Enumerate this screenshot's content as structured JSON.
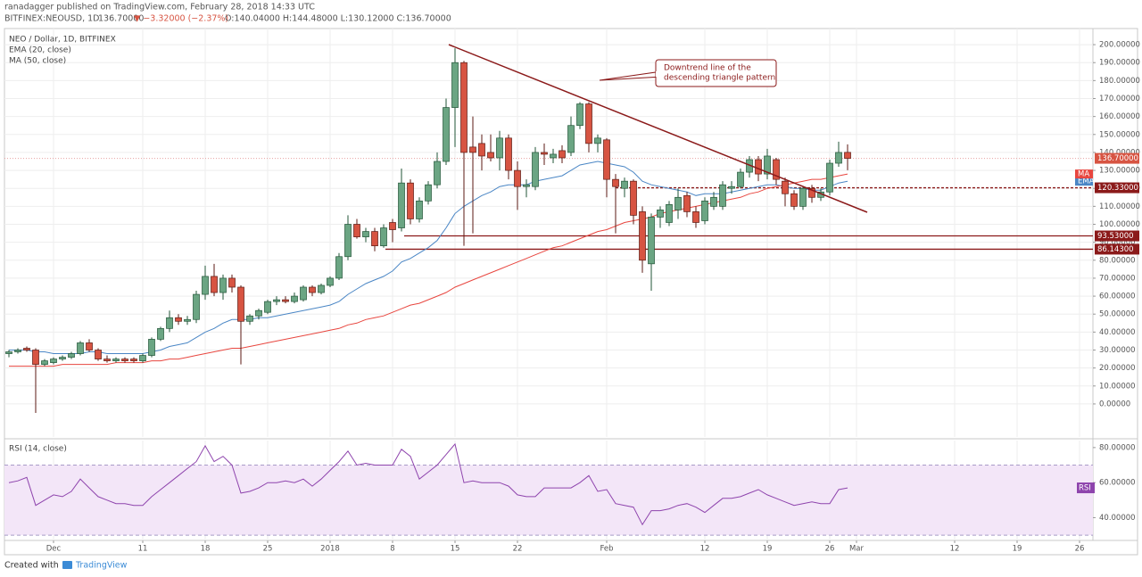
{
  "header": {
    "author_line": "ranadagger published on TradingView.com, February 28, 2018 14:33 UTC",
    "symbol": "BITFINEX:NEOUSD, 1D",
    "last": "136.70000",
    "change": "▼ −3.32000 (−2.37%)",
    "ohlc": "O:140.04000 H:144.48000 L:130.12000 C:136.70000"
  },
  "footer": {
    "created": "Created with",
    "brand": "TradingView"
  },
  "chart_data": [
    {
      "type": "candlestick",
      "title": "NEO / Dollar, 1D, BITFINEX",
      "categories": [
        null,
        null,
        null,
        null,
        null,
        "Dec",
        null,
        null,
        null,
        null,
        null,
        null,
        null,
        null,
        null,
        "11",
        null,
        null,
        null,
        null,
        null,
        null,
        "18",
        null,
        null,
        null,
        null,
        null,
        null,
        "25",
        null,
        null,
        null,
        null,
        null,
        null,
        "2018",
        null,
        null,
        null,
        null,
        null,
        null,
        "8",
        null,
        null,
        null,
        null,
        null,
        null,
        "15",
        null,
        null,
        null,
        null,
        null,
        null,
        "22",
        null,
        null,
        null,
        null,
        null,
        null,
        null,
        null,
        null,
        "Feb",
        null,
        null,
        null,
        null,
        null,
        null,
        null,
        null,
        null,
        null,
        "12",
        null,
        null,
        null,
        null,
        null,
        null,
        "19",
        null,
        null,
        null,
        null,
        null,
        null,
        "26",
        null,
        null,
        "Mar",
        null,
        null,
        null,
        null,
        null,
        null,
        null,
        null,
        null,
        null,
        "12",
        null,
        null,
        null,
        null,
        null,
        null,
        "19",
        null,
        null,
        null,
        null,
        null,
        null,
        "26",
        null
      ],
      "open": [
        28,
        29,
        31,
        30,
        22,
        23,
        25,
        26,
        28,
        34,
        30,
        25,
        24,
        25,
        25,
        24,
        27,
        36,
        42,
        48,
        46,
        47,
        61,
        71,
        62,
        70,
        65,
        46,
        49,
        51,
        57,
        58,
        57,
        58,
        65,
        62,
        66,
        70,
        82,
        100,
        93,
        96,
        88,
        101,
        98,
        123,
        103,
        113,
        122,
        135,
        165,
        190,
        143,
        145,
        140,
        137,
        148,
        130,
        121,
        121,
        140,
        137,
        141,
        140,
        155,
        167,
        145,
        147,
        125,
        120,
        124,
        107,
        78,
        104,
        101,
        108,
        116,
        107,
        102,
        110,
        110,
        120,
        121,
        129,
        136,
        128,
        136,
        124,
        117,
        110,
        120,
        115,
        118,
        134,
        140.04,
        null,
        null,
        null,
        null,
        null,
        null,
        null,
        null,
        null,
        null,
        null,
        null,
        null,
        null,
        null,
        null,
        null,
        null,
        null,
        null,
        null,
        null,
        null,
        null,
        null,
        null,
        null
      ],
      "high": [
        30,
        31,
        32,
        31,
        25,
        26,
        27,
        29,
        35,
        36,
        31,
        27,
        26,
        26,
        26,
        28,
        37,
        43,
        52,
        50,
        49,
        63,
        77,
        78,
        72,
        72,
        66,
        50,
        53,
        58,
        60,
        60,
        62,
        66,
        66,
        67,
        71,
        84,
        105,
        103,
        98,
        98,
        100,
        103,
        131,
        125,
        115,
        124,
        140,
        170,
        198,
        191,
        160,
        150,
        150,
        152,
        150,
        135,
        125,
        143,
        145,
        142,
        144,
        160,
        168,
        168,
        150,
        148,
        128,
        126,
        125,
        110,
        106,
        110,
        113,
        120,
        118,
        110,
        115,
        118,
        124,
        124,
        131,
        138,
        138,
        142,
        137,
        126,
        119,
        121,
        122,
        120,
        136,
        146,
        144.48,
        null,
        null,
        null,
        null,
        null,
        null,
        null,
        null,
        null,
        null,
        null,
        null,
        null,
        null,
        null,
        null,
        null,
        null,
        null,
        null,
        null,
        null,
        null,
        null,
        null,
        null,
        null
      ],
      "low": [
        26,
        28,
        29,
        -5,
        21,
        22,
        24,
        25,
        27,
        29,
        24,
        23,
        23,
        23,
        23,
        23,
        26,
        35,
        40,
        44,
        44,
        45,
        58,
        60,
        58,
        62,
        22,
        44,
        47,
        50,
        55,
        56,
        56,
        57,
        60,
        61,
        65,
        69,
        80,
        92,
        90,
        85,
        87,
        90,
        96,
        100,
        101,
        111,
        120,
        133,
        143,
        88,
        95,
        130,
        135,
        130,
        125,
        108,
        115,
        119,
        133,
        134,
        134,
        138,
        153,
        140,
        140,
        115,
        95,
        115,
        100,
        73,
        63,
        98,
        99,
        103,
        104,
        98,
        100,
        108,
        108,
        117,
        120,
        126,
        124,
        125,
        122,
        110,
        108,
        108,
        112,
        113,
        116,
        132,
        130.12,
        null,
        null,
        null,
        null,
        null,
        null,
        null,
        null,
        null,
        null,
        null,
        null,
        null,
        null,
        null,
        null,
        null,
        null,
        null,
        null,
        null,
        null,
        null,
        null,
        null,
        null,
        null
      ],
      "close": [
        29,
        30,
        30,
        22,
        24,
        25,
        26,
        28,
        34,
        30,
        25,
        24,
        25,
        24,
        24,
        27,
        36,
        42,
        48,
        46,
        47,
        61,
        71,
        62,
        70,
        65,
        46,
        49,
        52,
        57,
        58,
        57,
        60,
        65,
        62,
        66,
        70,
        82,
        100,
        93,
        96,
        88,
        98,
        97,
        123,
        103,
        113,
        122,
        135,
        165,
        190,
        140,
        140,
        138,
        137,
        148,
        130,
        121,
        122,
        140,
        139,
        139,
        137,
        155,
        167,
        145,
        148,
        125,
        121,
        124,
        105,
        80,
        104,
        108,
        111,
        115,
        107,
        101,
        113,
        115,
        122,
        121,
        129,
        136,
        128,
        138,
        125,
        117,
        110,
        120,
        115,
        118,
        134,
        140,
        136.7,
        null,
        null,
        null,
        null,
        null,
        null,
        null,
        null,
        null,
        null,
        null,
        null,
        null,
        null,
        null,
        null,
        null,
        null,
        null,
        null,
        null,
        null,
        null,
        null,
        null,
        null,
        null
      ],
      "up_color": "#6ba583",
      "down_color": "#d75442",
      "series": [
        {
          "name": "EMA (20, close)",
          "short": "EMA",
          "color": "#4a86c5",
          "values": [
            30,
            30,
            30,
            29,
            29,
            28,
            28,
            28,
            28,
            29,
            29,
            28,
            28,
            28,
            28,
            28,
            29,
            30,
            32,
            33,
            34,
            37,
            40,
            42,
            45,
            47,
            47,
            47,
            48,
            48,
            49,
            50,
            51,
            52,
            53,
            54,
            55,
            57,
            61,
            64,
            67,
            69,
            71,
            74,
            79,
            81,
            84,
            87,
            91,
            98,
            106,
            110,
            113,
            116,
            118,
            121,
            122,
            122,
            122,
            124,
            125,
            126,
            127,
            130,
            133,
            134,
            135,
            134,
            133,
            132,
            129,
            124,
            122,
            121,
            120,
            119,
            118,
            116,
            117,
            117,
            117,
            118,
            119,
            120,
            121,
            122,
            122,
            121,
            120,
            120,
            119,
            119,
            121,
            123,
            124,
            null,
            null,
            null,
            null,
            null,
            null,
            null,
            null,
            null,
            null,
            null,
            null,
            null,
            null,
            null,
            null,
            null,
            null,
            null,
            null,
            null,
            null,
            null,
            null,
            null,
            null,
            null
          ]
        },
        {
          "name": "MA (50, close)",
          "short": "MA",
          "color": "#e8463f",
          "values": [
            21,
            21,
            21,
            21,
            21,
            21,
            22,
            22,
            22,
            22,
            22,
            22,
            23,
            23,
            23,
            23,
            24,
            24,
            25,
            25,
            26,
            27,
            28,
            29,
            30,
            31,
            31,
            32,
            33,
            34,
            35,
            36,
            37,
            38,
            39,
            40,
            41,
            42,
            44,
            45,
            47,
            48,
            49,
            51,
            53,
            55,
            56,
            58,
            60,
            62,
            65,
            67,
            69,
            71,
            73,
            75,
            77,
            79,
            81,
            83,
            85,
            87,
            88,
            90,
            92,
            94,
            96,
            97,
            99,
            101,
            102,
            103,
            104,
            106,
            107,
            108,
            109,
            110,
            111,
            112,
            113,
            114,
            115,
            117,
            118,
            120,
            121,
            122,
            123,
            124,
            125,
            125,
            126,
            127,
            128,
            null,
            null,
            null,
            null,
            null,
            null,
            null,
            null,
            null,
            null,
            null,
            null,
            null,
            null,
            null,
            null,
            null,
            null,
            null,
            null,
            null,
            null,
            null,
            null,
            null,
            null,
            null
          ]
        }
      ],
      "last_price": {
        "value": 136.7,
        "label": "136.70000"
      },
      "price_lines": [
        {
          "value": 120.33,
          "label": "120.33000",
          "style": "dashed"
        },
        {
          "value": 93.53,
          "label": "93.53000",
          "style": "solid"
        },
        {
          "value": 86.143,
          "label": "86.14300",
          "style": "solid"
        }
      ],
      "annotation": [
        "Downtrend line of the",
        "descending triangle pattern"
      ],
      "ylim": [
        -18.4,
        205
      ],
      "yticks": [
        {
          "value": 0,
          "label": "0.00000"
        },
        {
          "value": 10,
          "label": "10.00000"
        },
        {
          "value": 20,
          "label": "20.00000"
        },
        {
          "value": 30,
          "label": "30.00000"
        },
        {
          "value": 40,
          "label": "40.00000"
        },
        {
          "value": 50,
          "label": "50.00000"
        },
        {
          "value": 60,
          "label": "60.00000"
        },
        {
          "value": 70,
          "label": "70.00000"
        },
        {
          "value": 80,
          "label": "80.00000"
        },
        {
          "value": 90,
          "label": "90.00000"
        },
        {
          "value": 100,
          "label": "100.00000"
        },
        {
          "value": 110,
          "label": "110.00000"
        },
        {
          "value": 120,
          "label": "120.00000"
        },
        {
          "value": 130,
          "label": "130.00000"
        },
        {
          "value": 140,
          "label": "140.00000"
        },
        {
          "value": 150,
          "label": "150.00000"
        },
        {
          "value": 160,
          "label": "160.00000"
        },
        {
          "value": 170,
          "label": "170.00000"
        },
        {
          "value": 180,
          "label": "180.00000"
        },
        {
          "value": 190,
          "label": "190.00000"
        },
        {
          "value": 200,
          "label": "200.00000"
        }
      ],
      "grid": true
    },
    {
      "type": "line",
      "title": "RSI (14, close)",
      "label": "RSI",
      "color": "#8e44ad",
      "band": [
        30,
        70
      ],
      "band_color": "#f3e6f8",
      "values": [
        60,
        61,
        63,
        47,
        50,
        53,
        52,
        55,
        62,
        57,
        52,
        50,
        48,
        48,
        47,
        47,
        52,
        56,
        60,
        64,
        68,
        72,
        81,
        72,
        75,
        70,
        54,
        55,
        57,
        60,
        60,
        61,
        60,
        62,
        58,
        62,
        67,
        72,
        78,
        70,
        71,
        70,
        70,
        70,
        79,
        75,
        62,
        66,
        70,
        76,
        82,
        60,
        61,
        60,
        60,
        60,
        58,
        53,
        52,
        52,
        57,
        57,
        57,
        57,
        60,
        64,
        55,
        56,
        48,
        47,
        46,
        36,
        44,
        44,
        45,
        47,
        48,
        46,
        43,
        47,
        51,
        51,
        52,
        54,
        56,
        53,
        51,
        49,
        47,
        48,
        49,
        48,
        48,
        56,
        57,
        null,
        null,
        null,
        null,
        null,
        null,
        null,
        null,
        null,
        null,
        null,
        null,
        null,
        null,
        null,
        null,
        null,
        null,
        null,
        null,
        null,
        null,
        null,
        null,
        null,
        null,
        null
      ],
      "ylim": [
        27,
        84
      ],
      "yticks": [
        {
          "value": 40,
          "label": "40.00000"
        },
        {
          "value": 60,
          "label": "60.00000"
        },
        {
          "value": 80,
          "label": "80.00000"
        }
      ]
    }
  ]
}
